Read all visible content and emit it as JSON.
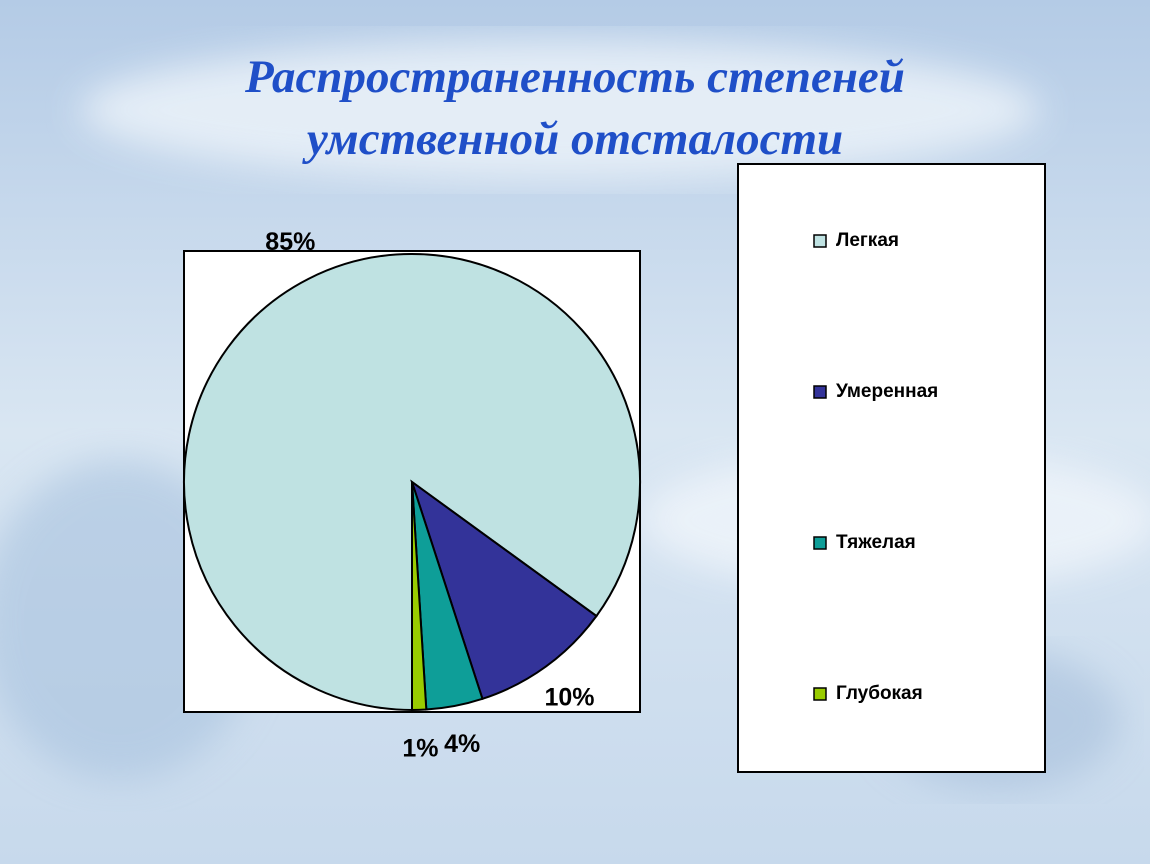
{
  "chart_data": {
    "type": "pie",
    "title": "Распространенность степеней умственной отсталости",
    "categories": [
      "Легкая",
      "Умеренная",
      "Тяжелая",
      "Глубокая"
    ],
    "values": [
      85,
      10,
      4,
      1
    ],
    "value_labels": [
      "85%",
      "10%",
      "4%",
      "1%"
    ],
    "colors": [
      "#bfe2e2",
      "#333399",
      "#0e9e98",
      "#99cc00"
    ],
    "legend": "right"
  }
}
